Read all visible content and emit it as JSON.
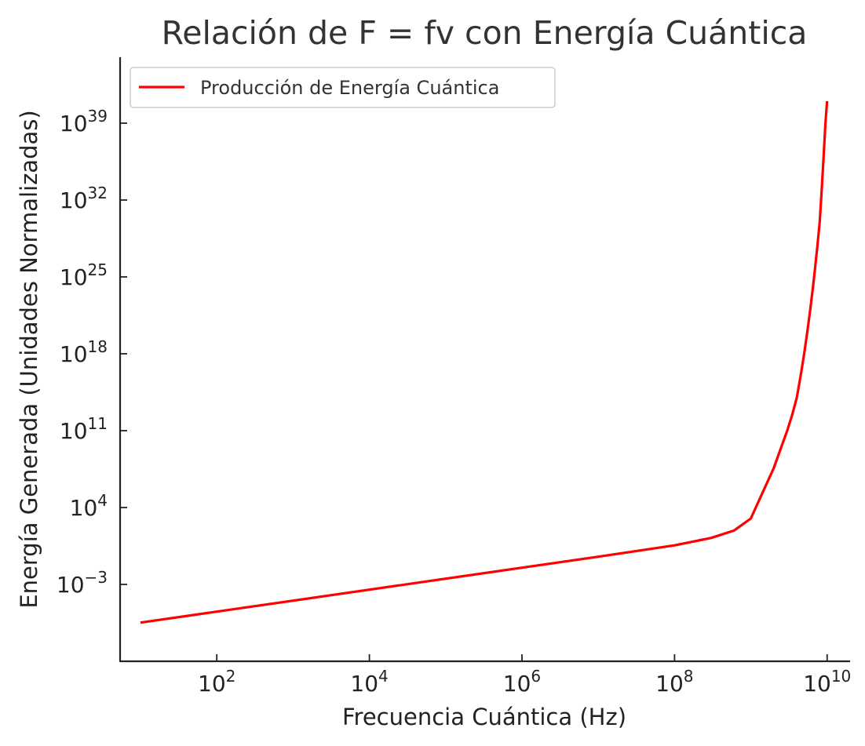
{
  "chart_data": {
    "type": "line",
    "title": "Relación de F = fv con Energía Cuántica",
    "xlabel": "Frecuencia Cuántica (Hz)",
    "ylabel": "Energía Generada (Unidades Normalizadas)",
    "xscale": "log",
    "yscale": "log",
    "xlim": [
      5.4,
      20000000000
    ],
    "ylim": [
      1e-10,
      1e+45
    ],
    "xticks": [
      {
        "value": 100,
        "base": "10",
        "exp": "2"
      },
      {
        "value": 10000,
        "base": "10",
        "exp": "4"
      },
      {
        "value": 1000000,
        "base": "10",
        "exp": "6"
      },
      {
        "value": 100000000,
        "base": "10",
        "exp": "8"
      },
      {
        "value": 10000000000,
        "base": "10",
        "exp": "10"
      }
    ],
    "yticks": [
      {
        "value": 0.001,
        "base": "10",
        "exp": "−3"
      },
      {
        "value": 10000.0,
        "base": "10",
        "exp": "4"
      },
      {
        "value": 100000000000.0,
        "base": "10",
        "exp": "11"
      },
      {
        "value": 1e+18,
        "base": "10",
        "exp": "18"
      },
      {
        "value": 1e+25,
        "base": "10",
        "exp": "25"
      },
      {
        "value": 1e+32,
        "base": "10",
        "exp": "32"
      },
      {
        "value": 1e+39,
        "base": "10",
        "exp": "39"
      }
    ],
    "grid": false,
    "legend_position": "top-left",
    "series": [
      {
        "name": "Producción de Energía Cuántica",
        "color": "#ff0000",
        "x": [
          10,
          100,
          1000,
          10000,
          100000,
          1000000,
          10000000,
          100000000,
          300000000,
          600000000,
          1000000000,
          1500000000,
          2000000000,
          2500000000,
          3000000000,
          3500000000,
          4000000000,
          4500000000,
          5000000000,
          5500000000,
          6000000000,
          6500000000,
          7000000000,
          7500000000,
          8000000000,
          8500000000,
          9000000000,
          9500000000,
          10000000000
        ],
        "y": [
          3.3e-07,
          3.3e-06,
          3.3e-05,
          0.00033,
          0.0033,
          0.033,
          0.33,
          3.6,
          17,
          80,
          1000.0,
          500000.0,
          40000000.0,
          3000000000.0,
          100000000000.0,
          3000000000000.0,
          100000000000000.0,
          1e+16,
          1e+18,
          1e+20,
          1e+22,
          1e+24,
          1e+26,
          1e+28,
          1e+30,
          1e+33,
          1e+36,
          1e+39,
          1e+41
        ]
      }
    ]
  }
}
